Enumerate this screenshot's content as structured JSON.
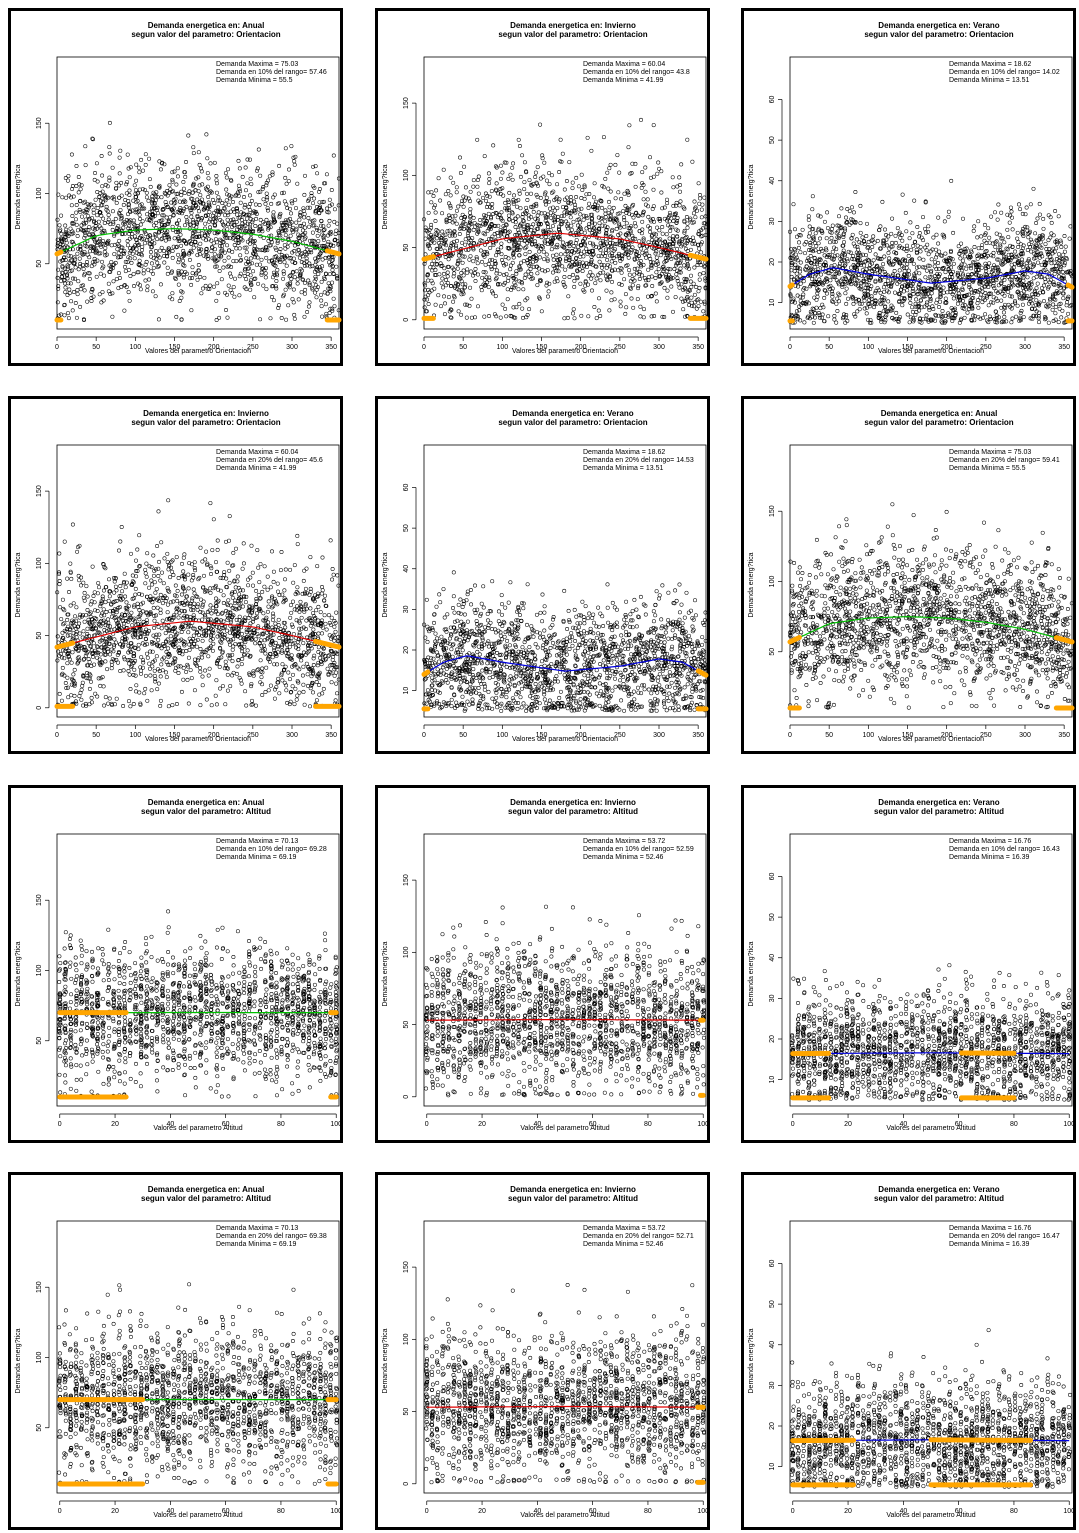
{
  "chart_data": [
    {
      "type": "scatter",
      "title": "Demanda energetica en: Anual",
      "subtitle": "segun valor del parametro: Orientacion",
      "xlabel": "Valores del parametro Orientacion",
      "ylabel": "Demanda energ?tica",
      "xlim": [
        0,
        360
      ],
      "ylim": [
        5,
        190
      ],
      "xticks": [
        0,
        50,
        100,
        150,
        200,
        250,
        300,
        350
      ],
      "yticks": [
        50,
        100,
        150
      ],
      "annotations": [
        "Demanda Maxima = 75.03",
        "Demanda en 10% del rango= 57.46",
        "Demanda Minima = 55.5"
      ],
      "fit_color": "#00c000",
      "fit_curve": [
        [
          0,
          57
        ],
        [
          50,
          70
        ],
        [
          100,
          74
        ],
        [
          150,
          75
        ],
        [
          200,
          74
        ],
        [
          250,
          71
        ],
        [
          300,
          66
        ],
        [
          360,
          57
        ]
      ],
      "highlight_x": [
        [
          0,
          5
        ],
        [
          345,
          360
        ]
      ],
      "highlight_y_fit": 57.46,
      "highlight_y_low": 10,
      "points_y_range": [
        10,
        155
      ],
      "points_mid": 72
    },
    {
      "type": "scatter",
      "title": "Demanda energetica en: Invierno",
      "subtitle": "segun valor del parametro: Orientacion",
      "xlabel": "Valores del parametro Orientacion",
      "ylabel": "Demanda energ?tica",
      "xlim": [
        0,
        360
      ],
      "ylim": [
        -5,
        175
      ],
      "xticks": [
        0,
        50,
        100,
        150,
        200,
        250,
        300,
        350
      ],
      "yticks": [
        0,
        50,
        100,
        150
      ],
      "annotations": [
        "Demanda Maxima = 60.04",
        "Demanda en 10% del rango= 43.8",
        "Demanda Minima = 41.99"
      ],
      "fit_color": "#e00000",
      "fit_curve": [
        [
          0,
          42
        ],
        [
          50,
          49
        ],
        [
          100,
          56
        ],
        [
          170,
          60
        ],
        [
          250,
          56
        ],
        [
          300,
          50
        ],
        [
          360,
          42
        ]
      ],
      "highlight_x": [
        [
          0,
          12
        ],
        [
          340,
          360
        ]
      ],
      "highlight_y_fit": 43.8,
      "highlight_y_low": 1,
      "points_y_range": [
        1,
        145
      ],
      "points_mid": 52
    },
    {
      "type": "scatter",
      "title": "Demanda energetica en: Verano",
      "subtitle": "segun valor del parametro: Orientacion",
      "xlabel": "Valores del parametro Orientacion",
      "ylabel": "Demanda energ?tica",
      "xlim": [
        0,
        360
      ],
      "ylim": [
        4,
        68
      ],
      "xticks": [
        0,
        50,
        100,
        150,
        200,
        250,
        300,
        350
      ],
      "yticks": [
        10,
        20,
        30,
        40,
        50,
        60
      ],
      "annotations": [
        "Demanda Maxima = 18.62",
        "Demanda en 10% del rango= 14.02",
        "Demanda Minima = 13.51"
      ],
      "fit_color": "#0000e0",
      "fit_curve": [
        [
          0,
          14
        ],
        [
          25,
          17
        ],
        [
          55,
          18.6
        ],
        [
          100,
          17
        ],
        [
          180,
          14.8
        ],
        [
          250,
          16
        ],
        [
          300,
          17.8
        ],
        [
          330,
          17
        ],
        [
          360,
          13.8
        ]
      ],
      "highlight_x": [
        [
          0,
          3
        ],
        [
          355,
          360
        ]
      ],
      "highlight_y_fit": 14.02,
      "highlight_y_low": 5.5,
      "points_y_range": [
        5,
        47
      ],
      "points_mid": 17
    },
    {
      "type": "scatter",
      "title": "Demanda energetica en: Invierno",
      "subtitle": "segun valor del parametro: Orientacion",
      "xlabel": "Valores del parametro Orientacion",
      "ylabel": "Demanda energ?tica",
      "xlim": [
        0,
        360
      ],
      "ylim": [
        -5,
        175
      ],
      "xticks": [
        0,
        50,
        100,
        150,
        200,
        250,
        300,
        350
      ],
      "yticks": [
        0,
        50,
        100,
        150
      ],
      "annotations": [
        "Demanda Maxima = 60.04",
        "Demanda en 20% del rango= 45.6",
        "Demanda Minima = 41.99"
      ],
      "fit_color": "#e00000",
      "fit_curve": [
        [
          0,
          42
        ],
        [
          50,
          49
        ],
        [
          100,
          56
        ],
        [
          170,
          60
        ],
        [
          250,
          56
        ],
        [
          300,
          50
        ],
        [
          360,
          42
        ]
      ],
      "highlight_x": [
        [
          0,
          20
        ],
        [
          330,
          360
        ]
      ],
      "highlight_y_fit": 45.6,
      "highlight_y_low": 1,
      "points_y_range": [
        1,
        145
      ],
      "points_mid": 52
    },
    {
      "type": "scatter",
      "title": "Demanda energetica en: Verano",
      "subtitle": "segun valor del parametro: Orientacion",
      "xlabel": "Valores del parametro Orientacion",
      "ylabel": "Demanda energ?tica",
      "xlim": [
        0,
        360
      ],
      "ylim": [
        4,
        68
      ],
      "xticks": [
        0,
        50,
        100,
        150,
        200,
        250,
        300,
        350
      ],
      "yticks": [
        10,
        20,
        30,
        40,
        50,
        60
      ],
      "annotations": [
        "Demanda Maxima = 18.62",
        "Demanda en 20% del rango= 14.53",
        "Demanda Minima = 13.51"
      ],
      "fit_color": "#0000e0",
      "fit_curve": [
        [
          0,
          14
        ],
        [
          25,
          17
        ],
        [
          55,
          18.6
        ],
        [
          100,
          17
        ],
        [
          180,
          14.8
        ],
        [
          250,
          16
        ],
        [
          300,
          17.8
        ],
        [
          330,
          17
        ],
        [
          360,
          13.8
        ]
      ],
      "highlight_x": [
        [
          0,
          5
        ],
        [
          350,
          360
        ]
      ],
      "highlight_y_fit": 14.53,
      "highlight_y_low": 5.5,
      "points_y_range": [
        5,
        47
      ],
      "points_mid": 17
    },
    {
      "type": "scatter",
      "title": "Demanda energetica en: Anual",
      "subtitle": "segun valor del parametro: Orientacion",
      "xlabel": "Valores del parametro Orientacion",
      "ylabel": "Demanda energ?tica",
      "xlim": [
        0,
        360
      ],
      "ylim": [
        5,
        190
      ],
      "xticks": [
        0,
        50,
        100,
        150,
        200,
        250,
        300,
        350
      ],
      "yticks": [
        50,
        100,
        150
      ],
      "annotations": [
        "Demanda Maxima = 75.03",
        "Demanda en 20% del rango= 59.41",
        "Demanda Minima = 55.5"
      ],
      "fit_color": "#00c000",
      "fit_curve": [
        [
          0,
          57
        ],
        [
          50,
          70
        ],
        [
          100,
          74
        ],
        [
          150,
          75
        ],
        [
          200,
          74
        ],
        [
          250,
          71
        ],
        [
          300,
          66
        ],
        [
          360,
          57
        ]
      ],
      "highlight_x": [
        [
          0,
          12
        ],
        [
          340,
          360
        ]
      ],
      "highlight_y_fit": 59.41,
      "highlight_y_low": 10,
      "points_y_range": [
        10,
        155
      ],
      "points_mid": 72
    },
    {
      "type": "scatter",
      "title": "Demanda energetica en: Anual",
      "subtitle": "segun valor del parametro: Altitud",
      "xlabel": "Valores del parametro Altitud",
      "ylabel": "Demanda energ?tica",
      "xlim": [
        -1,
        101
      ],
      "ylim": [
        5,
        190
      ],
      "xticks": [
        0,
        20,
        40,
        60,
        80,
        100
      ],
      "yticks": [
        50,
        100,
        150
      ],
      "annotations": [
        "Demanda Maxima = 70.13",
        "Demanda en 10% del rango= 69.28",
        "Demanda Minima = 69.19"
      ],
      "fit_color": "#00c000",
      "fit_curve": [
        [
          0,
          70
        ],
        [
          50,
          70.1
        ],
        [
          100,
          70
        ]
      ],
      "highlight_x": [
        [
          0,
          24
        ],
        [
          98,
          100
        ]
      ],
      "highlight_y_fit": 69.28,
      "highlight_y_low": 10,
      "points_y_range": [
        10,
        155
      ],
      "points_mid": 70,
      "stripes": true
    },
    {
      "type": "scatter",
      "title": "Demanda energetica en: Invierno",
      "subtitle": "segun valor del parametro: Altitud",
      "xlabel": "Valores del parametro Altitud",
      "ylabel": "Demanda energ?tica",
      "xlim": [
        -1,
        101
      ],
      "ylim": [
        -5,
        175
      ],
      "xticks": [
        0,
        20,
        40,
        60,
        80,
        100
      ],
      "yticks": [
        0,
        50,
        100,
        150
      ],
      "annotations": [
        "Demanda Maxima = 53.72",
        "Demanda en 10% del rango= 52.59",
        "Demanda Minima = 52.46"
      ],
      "fit_color": "#e00000",
      "fit_curve": [
        [
          0,
          53
        ],
        [
          50,
          53.5
        ],
        [
          100,
          53
        ]
      ],
      "highlight_x": [
        [
          99,
          100
        ]
      ],
      "highlight_y_fit": 52.59,
      "highlight_y_low": 1,
      "points_y_range": [
        1,
        145
      ],
      "points_mid": 53,
      "stripes": true
    },
    {
      "type": "scatter",
      "title": "Demanda energetica en: Verano",
      "subtitle": "segun valor del parametro: Altitud",
      "xlabel": "Valores del parametro Altitud",
      "ylabel": "Demanda energ?tica",
      "xlim": [
        -1,
        101
      ],
      "ylim": [
        4,
        68
      ],
      "xticks": [
        0,
        20,
        40,
        60,
        80,
        100
      ],
      "yticks": [
        10,
        20,
        30,
        40,
        50,
        60
      ],
      "annotations": [
        "Demanda Maxima = 16.76",
        "Demanda en 10% del rango= 16.43",
        "Demanda Minima = 16.39"
      ],
      "fit_color": "#0000e0",
      "fit_curve": [
        [
          0,
          16.4
        ],
        [
          50,
          16.6
        ],
        [
          100,
          16.4
        ]
      ],
      "highlight_x": [
        [
          0,
          13
        ],
        [
          61,
          80
        ]
      ],
      "highlight_y_fit": 16.43,
      "highlight_y_low": 5.5,
      "points_y_range": [
        5,
        47
      ],
      "points_mid": 16,
      "stripes": true
    },
    {
      "type": "scatter",
      "title": "Demanda energetica en: Anual",
      "subtitle": "segun valor del parametro: Altitud",
      "xlabel": "Valores del parametro Altitud",
      "ylabel": "Demanda energ?tica",
      "xlim": [
        -1,
        101
      ],
      "ylim": [
        5,
        190
      ],
      "xticks": [
        0,
        20,
        40,
        60,
        80,
        100
      ],
      "yticks": [
        50,
        100,
        150
      ],
      "annotations": [
        "Demanda Maxima = 70.13",
        "Demanda en 20% del rango= 69.38",
        "Demanda Minima = 69.19"
      ],
      "fit_color": "#00c000",
      "fit_curve": [
        [
          0,
          70
        ],
        [
          50,
          70.1
        ],
        [
          100,
          70
        ]
      ],
      "highlight_x": [
        [
          0,
          30
        ],
        [
          97,
          100
        ]
      ],
      "highlight_y_fit": 69.38,
      "highlight_y_low": 10,
      "points_y_range": [
        10,
        155
      ],
      "points_mid": 70,
      "stripes": true
    },
    {
      "type": "scatter",
      "title": "Demanda energetica en: Invierno",
      "subtitle": "segun valor del parametro: Altitud",
      "xlabel": "Valores del parametro Altitud",
      "ylabel": "Demanda energ?tica",
      "xlim": [
        -1,
        101
      ],
      "ylim": [
        -5,
        175
      ],
      "xticks": [
        0,
        20,
        40,
        60,
        80,
        100
      ],
      "yticks": [
        0,
        50,
        100,
        150
      ],
      "annotations": [
        "Demanda Maxima = 53.72",
        "Demanda en 20% del rango= 52.71",
        "Demanda Minima = 52.46"
      ],
      "fit_color": "#e00000",
      "fit_curve": [
        [
          0,
          53
        ],
        [
          50,
          53.5
        ],
        [
          100,
          53
        ]
      ],
      "highlight_x": [
        [
          98,
          100
        ]
      ],
      "highlight_y_fit": 52.71,
      "highlight_y_low": 1,
      "points_y_range": [
        1,
        145
      ],
      "points_mid": 53,
      "stripes": true
    },
    {
      "type": "scatter",
      "title": "Demanda energetica en: Verano",
      "subtitle": "segun valor del parametro: Altitud",
      "xlabel": "Valores del parametro Altitud",
      "ylabel": "Demanda energ?tica",
      "xlim": [
        -1,
        101
      ],
      "ylim": [
        4,
        68
      ],
      "xticks": [
        0,
        20,
        40,
        60,
        80,
        100
      ],
      "yticks": [
        10,
        20,
        30,
        40,
        50,
        60
      ],
      "annotations": [
        "Demanda Maxima = 16.76",
        "Demanda en 20% del rango= 16.47",
        "Demanda Minima = 16.39"
      ],
      "fit_color": "#0000e0",
      "fit_curve": [
        [
          0,
          16.4
        ],
        [
          50,
          16.6
        ],
        [
          100,
          16.4
        ]
      ],
      "highlight_x": [
        [
          0,
          22
        ],
        [
          50,
          86
        ]
      ],
      "highlight_y_fit": 16.47,
      "highlight_y_low": 5.5,
      "points_y_range": [
        5,
        47
      ],
      "points_mid": 16,
      "stripes": true
    }
  ],
  "colors": {
    "highlight": "#ffa500",
    "points": "#000000"
  }
}
